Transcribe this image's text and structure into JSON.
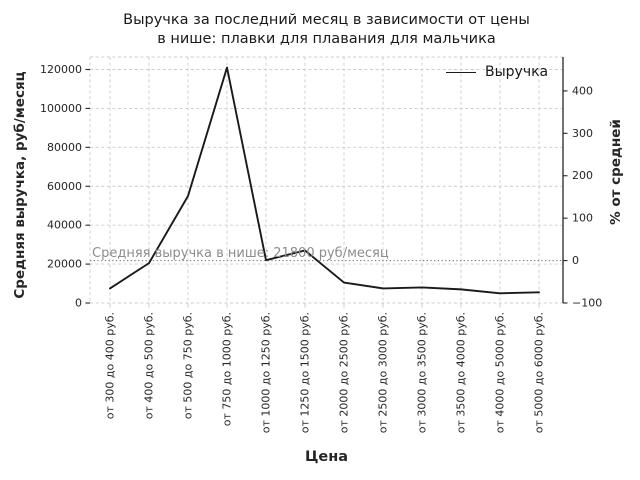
{
  "title": {
    "line1": "Выручка за последний месяц в зависимости от цены",
    "line2": "в нише: плавки для плавания для мальчика"
  },
  "legend": {
    "label": "Выручка"
  },
  "annotation": {
    "text": "Средняя выручка в нише: 21800 руб/месяц"
  },
  "chart_data": {
    "type": "line",
    "title": "Выручка за последний месяц в зависимости от цены в нише: плавки для плавания для мальчика",
    "xlabel": "Цена",
    "ylabel_left": "Средняя выручка, руб/месяц",
    "ylabel_right": "% от средней",
    "categories": [
      "от 300 до 400 руб.",
      "от 400 до 500 руб.",
      "от 500 до 750 руб.",
      "от 750 до 1000 руб.",
      "от 1000 до 1250 руб.",
      "от 1250 до 1500 руб.",
      "от 2000 до 2500 руб.",
      "от 2500 до 3000 руб.",
      "от 3000 до 3500 руб.",
      "от 3500 до 4000 руб.",
      "от 4000 до 5000 руб.",
      "от 5000 до 6000 руб."
    ],
    "series": [
      {
        "name": "Выручка",
        "values": [
          7500,
          20500,
          55000,
          121000,
          22000,
          27000,
          10500,
          7500,
          8000,
          7000,
          5000,
          5500
        ]
      }
    ],
    "average_line": {
      "value": 21800,
      "unit": "руб/месяц",
      "style": "dotted"
    },
    "yticks_left": [
      0,
      20000,
      40000,
      60000,
      80000,
      100000,
      120000
    ],
    "yticks_right": [
      -100,
      0,
      100,
      200,
      300,
      400
    ],
    "ylim_left": [
      0,
      126500
    ],
    "grid": true,
    "legend_position": "upper right",
    "line_color": "#1a1a1a",
    "grid_color": "#cccccc",
    "avg_color": "#7f7f7f",
    "text_color": "#262626"
  }
}
